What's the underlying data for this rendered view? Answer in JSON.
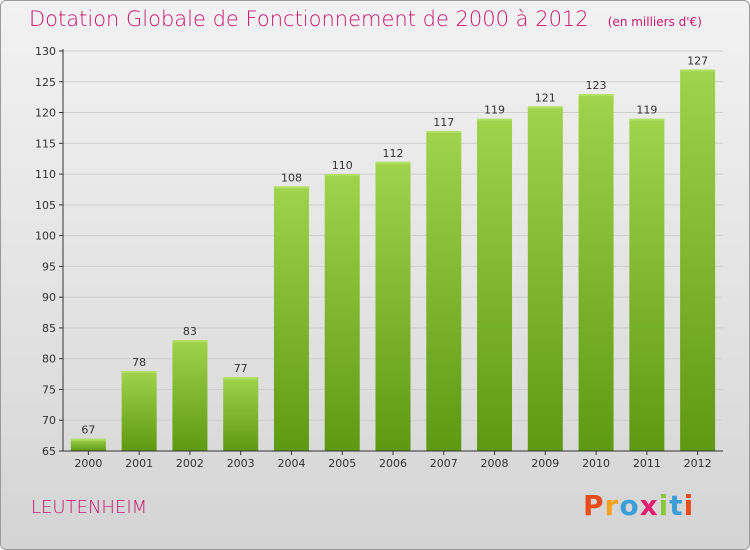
{
  "header": {
    "title": "Dotation Globale de Fonctionnement de 2000 à 2012",
    "unit": "(en milliers d'€)"
  },
  "footer": {
    "commune": "LEUTENHEIM",
    "logo_letters": [
      "P",
      "r",
      "o",
      "x",
      "i",
      "t",
      "i"
    ],
    "logo_colors": [
      "#e74c1c",
      "#f4a11d",
      "#3b9ed8",
      "#e0206e",
      "#8cc63f",
      "#3b9ed8",
      "#e74c1c"
    ]
  },
  "colors": {
    "title": "#c8156e",
    "bar_top": "#9fd44c",
    "bar_bottom": "#5e9912",
    "axis": "#333333",
    "grid": "#cfcfcf"
  },
  "chart_data": {
    "type": "bar",
    "categories": [
      "2000",
      "2001",
      "2002",
      "2003",
      "2004",
      "2005",
      "2006",
      "2007",
      "2008",
      "2009",
      "2010",
      "2011",
      "2012"
    ],
    "values": [
      67,
      78,
      83,
      77,
      108,
      110,
      112,
      117,
      119,
      121,
      123,
      119,
      127
    ],
    "ylim": [
      65,
      130
    ],
    "yticks": [
      65,
      70,
      75,
      80,
      85,
      90,
      95,
      100,
      105,
      110,
      115,
      120,
      125,
      130
    ],
    "grid": true,
    "legend": "none"
  }
}
